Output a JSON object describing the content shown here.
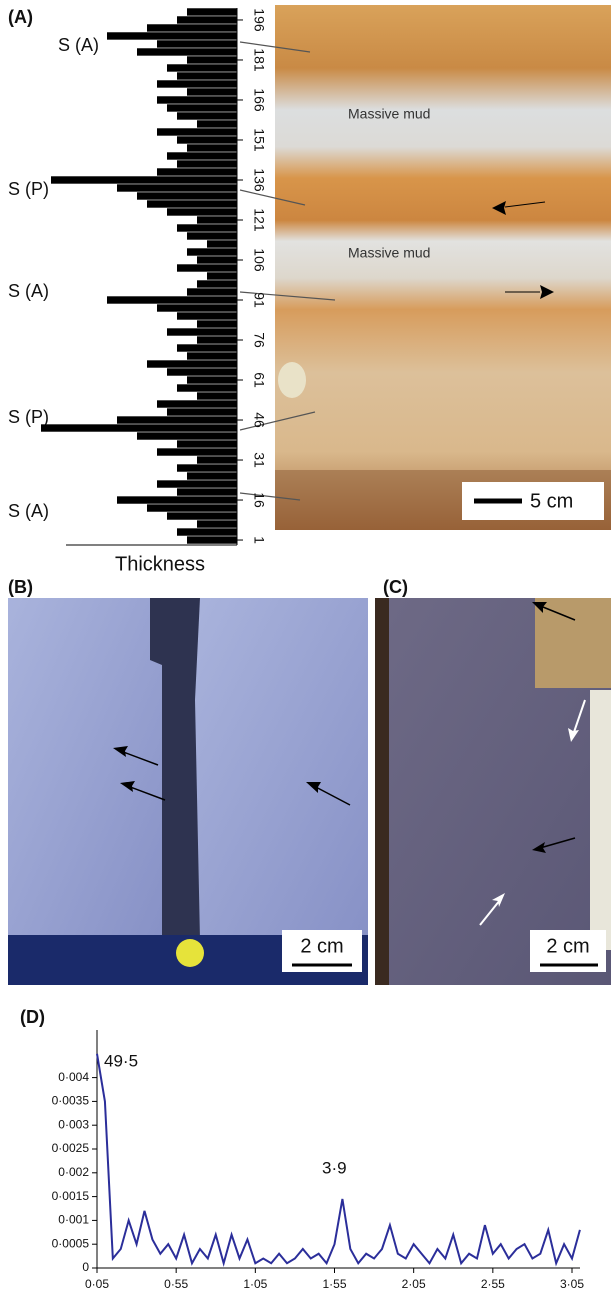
{
  "panels": [
    "(A)",
    "(B)",
    "(C)",
    "(D)"
  ],
  "photo_text": {
    "massive_mud_upper": "Massive mud",
    "massive_mud_lower": "Massive mud",
    "scale_a": "5 cm",
    "scale_b": "2 cm",
    "scale_c": "2 cm"
  },
  "chart_data": [
    {
      "type": "bar",
      "orientation": "horizontal",
      "xlabel": "Thickness",
      "color": "#000000",
      "annotations": [
        "S (A)",
        "S (P)",
        "S (A)",
        "S (P)",
        "S (A)"
      ],
      "x": [
        1,
        4,
        7,
        10,
        13,
        16,
        19,
        22,
        25,
        28,
        31,
        34,
        37,
        40,
        43,
        46,
        49,
        52,
        55,
        58,
        61,
        64,
        67,
        70,
        73,
        76,
        79,
        82,
        85,
        88,
        91,
        94,
        97,
        100,
        103,
        106,
        109,
        112,
        115,
        118,
        121,
        124,
        127,
        130,
        133,
        136,
        139,
        142,
        145,
        148,
        151,
        154,
        157,
        160,
        163,
        166,
        169,
        172,
        175,
        178,
        181,
        184,
        187,
        190,
        193,
        196,
        199
      ],
      "values": [
        2.5,
        3,
        2,
        3.5,
        4.5,
        6,
        3,
        4,
        2.5,
        3,
        2,
        4,
        3,
        5,
        9.8,
        6,
        3.5,
        4,
        2,
        3,
        2.5,
        3.5,
        4.5,
        2.5,
        3,
        2,
        3.5,
        2,
        3,
        4,
        6.5,
        2.5,
        2,
        1.5,
        3,
        2,
        2.5,
        1.5,
        2.5,
        3,
        2,
        3.5,
        4.5,
        5,
        6,
        9.3,
        4,
        3,
        3.5,
        2.5,
        3,
        4,
        2,
        3,
        3.5,
        4,
        2.5,
        4,
        3,
        3.5,
        2.5,
        5,
        4,
        6.5,
        4.5,
        3,
        2.5
      ],
      "xlim": [
        0,
        10
      ],
      "ylim": [
        0,
        200
      ],
      "yticks": [
        1,
        16,
        31,
        46,
        61,
        76,
        91,
        106,
        121,
        136,
        151,
        166,
        181,
        196
      ]
    },
    {
      "type": "line",
      "color": "#2b2e9a",
      "annotations": [
        "49·5",
        "3·9"
      ],
      "x": [
        0.05,
        0.1,
        0.15,
        0.2,
        0.25,
        0.3,
        0.35,
        0.4,
        0.45,
        0.5,
        0.55,
        0.6,
        0.65,
        0.7,
        0.75,
        0.8,
        0.85,
        0.9,
        0.95,
        1.0,
        1.05,
        1.1,
        1.15,
        1.2,
        1.25,
        1.3,
        1.35,
        1.4,
        1.45,
        1.5,
        1.55,
        1.6,
        1.65,
        1.7,
        1.75,
        1.8,
        1.85,
        1.9,
        1.95,
        2.0,
        2.05,
        2.1,
        2.15,
        2.2,
        2.25,
        2.3,
        2.35,
        2.4,
        2.45,
        2.5,
        2.55,
        2.6,
        2.65,
        2.7,
        2.75,
        2.8,
        2.85,
        2.9,
        2.95,
        3.0,
        3.05,
        3.1
      ],
      "values": [
        0.0045,
        0.0035,
        0.0002,
        0.0004,
        0.001,
        0.0005,
        0.0012,
        0.0006,
        0.0003,
        0.0005,
        0.0002,
        0.0007,
        0.0001,
        0.0004,
        0.0002,
        0.0007,
        0.0001,
        0.0007,
        0.0002,
        0.0006,
        0.0001,
        0.0002,
        0.0001,
        0.0003,
        0.0001,
        0.0002,
        0.0004,
        0.0002,
        0.0003,
        0.0001,
        0.0005,
        0.00145,
        0.0004,
        0.0001,
        0.0003,
        0.0002,
        0.0004,
        0.0009,
        0.0003,
        0.0002,
        0.0005,
        0.0003,
        0.0001,
        0.0004,
        0.0002,
        0.0007,
        0.0001,
        0.0003,
        0.0002,
        0.0009,
        0.0003,
        0.0005,
        0.0002,
        0.0004,
        0.0005,
        0.0002,
        0.0003,
        0.0008,
        0.0001,
        0.0005,
        0.0002,
        0.0008
      ],
      "xlim": [
        0.05,
        3.05
      ],
      "ylim": [
        0,
        0.005
      ],
      "xticks": [
        {
          "value": 0.05,
          "label": "0·05"
        },
        {
          "value": 0.55,
          "label": "0·55"
        },
        {
          "value": 1.05,
          "label": "1·05"
        },
        {
          "value": 1.55,
          "label": "1·55"
        },
        {
          "value": 2.05,
          "label": "2·05"
        },
        {
          "value": 2.55,
          "label": "2·55"
        },
        {
          "value": 3.05,
          "label": "3·05"
        }
      ],
      "yticks": [
        0,
        {
          "value": 0.0005,
          "label": "0·0005"
        },
        {
          "value": 0.001,
          "label": "0·001"
        },
        {
          "value": 0.0015,
          "label": "0·0015"
        },
        {
          "value": 0.002,
          "label": "0·002"
        },
        {
          "value": 0.0025,
          "label": "0·0025"
        },
        {
          "value": 0.003,
          "label": "0·003"
        },
        {
          "value": 0.0035,
          "label": "0·0035"
        },
        {
          "value": 0.004,
          "label": "0·004"
        }
      ]
    }
  ]
}
